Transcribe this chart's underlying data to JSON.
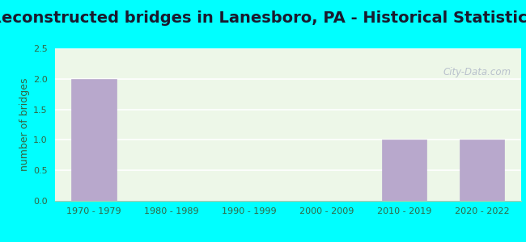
{
  "title": "Reconstructed bridges in Lanesboro, PA - Historical Statistics",
  "categories": [
    "1970 - 1979",
    "1980 - 1989",
    "1990 - 1999",
    "2000 - 2009",
    "2010 - 2019",
    "2020 - 2022"
  ],
  "values": [
    2,
    0,
    0,
    0,
    1,
    1
  ],
  "bar_color": "#b8a8cc",
  "ylabel": "number of bridges",
  "ylim": [
    0,
    2.5
  ],
  "yticks": [
    0,
    0.5,
    1,
    1.5,
    2,
    2.5
  ],
  "background_outer": "#00ffff",
  "background_plot": "#edf7e8",
  "title_fontsize": 14,
  "title_color": "#1a1a2e",
  "axis_label_fontsize": 9,
  "axis_label_color": "#336644",
  "tick_fontsize": 8,
  "tick_color": "#336644",
  "watermark_text": "City-Data.com",
  "grid_color": "#ffffff",
  "spine_color": "#aaccaa"
}
